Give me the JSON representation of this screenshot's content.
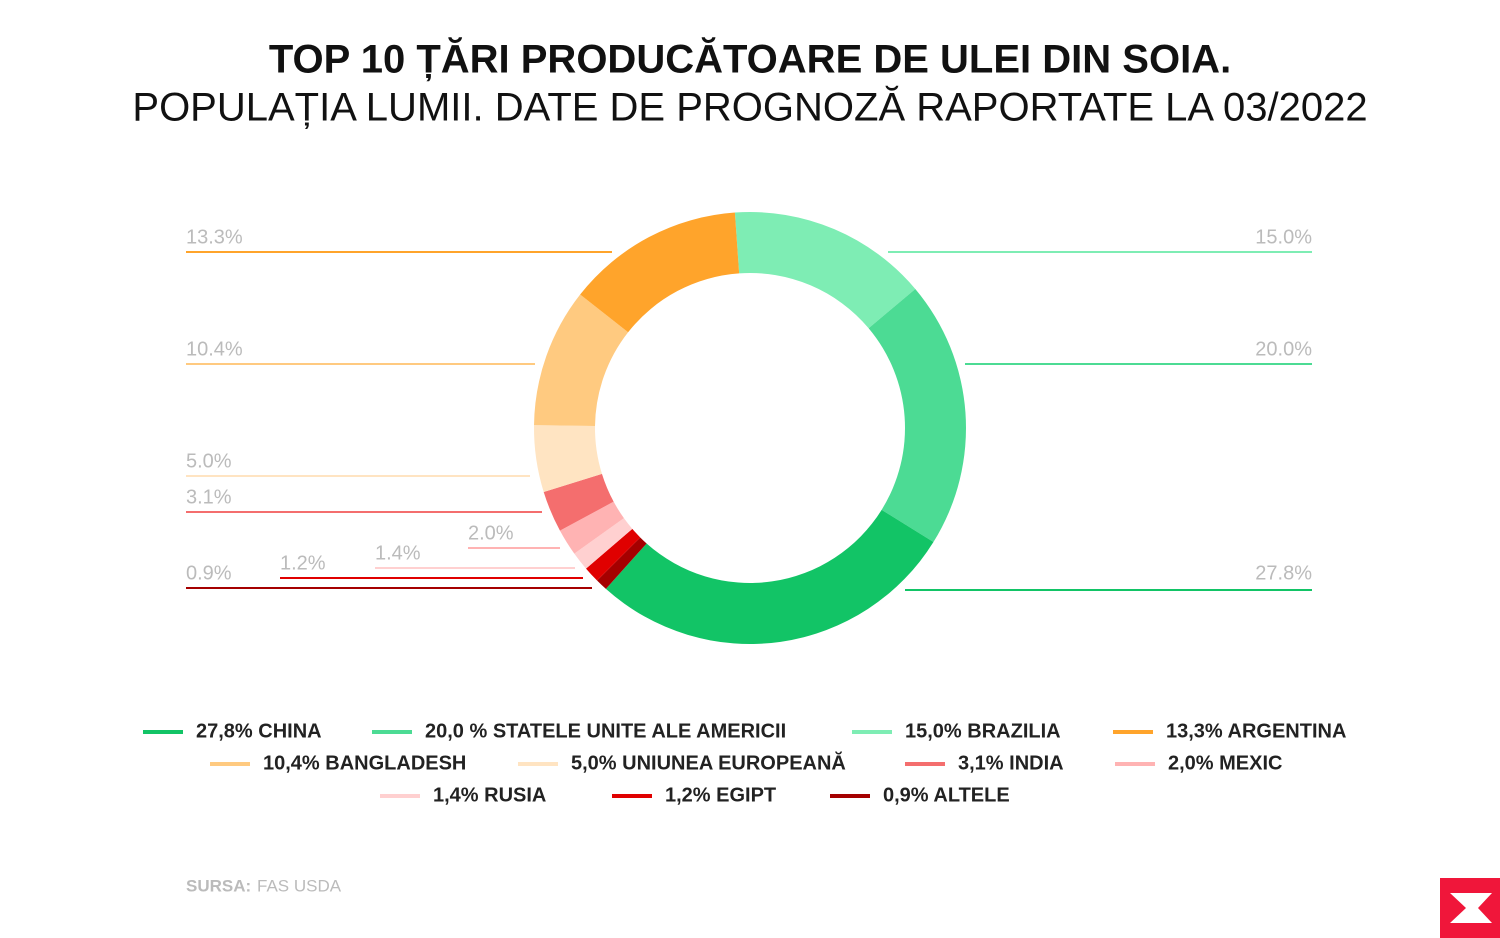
{
  "chart_data": {
    "type": "donut",
    "title": "TOP 10 ȚĂRI PRODUCĂTOARE DE ULEI DIN SOIA.",
    "subtitle": "POPULAȚIA LUMII. DATE DE PROGNOZĂ RAPORTATE LA 03/2022",
    "categories": [
      "27,8% CHINA",
      "20,0 % STATELE UNITE ALE AMERICII",
      "15,0% BRAZILIA",
      "13,3% ARGENTINA",
      "10,4% BANGLADESH",
      "5,0% UNIUNEA EUROPEANĂ",
      "3,1% INDIA",
      "2,0% MEXIC",
      "1,4% RUSIA",
      "1,2% EGIPT",
      "0,9% ALTELE"
    ],
    "values": [
      27.8,
      20.0,
      15.0,
      13.3,
      10.4,
      5.0,
      3.1,
      2.0,
      1.4,
      1.2,
      0.9
    ],
    "value_labels": [
      "27.8%",
      "20.0%",
      "15.0%",
      "13.3%",
      "10.4%",
      "5.0%",
      "3.1%",
      "2.0%",
      "1.4%",
      "1.2%",
      "0.9%"
    ],
    "colors": [
      "#12c466",
      "#4cdb94",
      "#7eedb4",
      "#ffa42b",
      "#ffca80",
      "#ffe4c2",
      "#f46e6e",
      "#ffb3b3",
      "#ffd0d0",
      "#e00000",
      "#a50000"
    ],
    "legend": "bottom"
  },
  "source_label": "SURSA:",
  "source": "FAS USDA"
}
